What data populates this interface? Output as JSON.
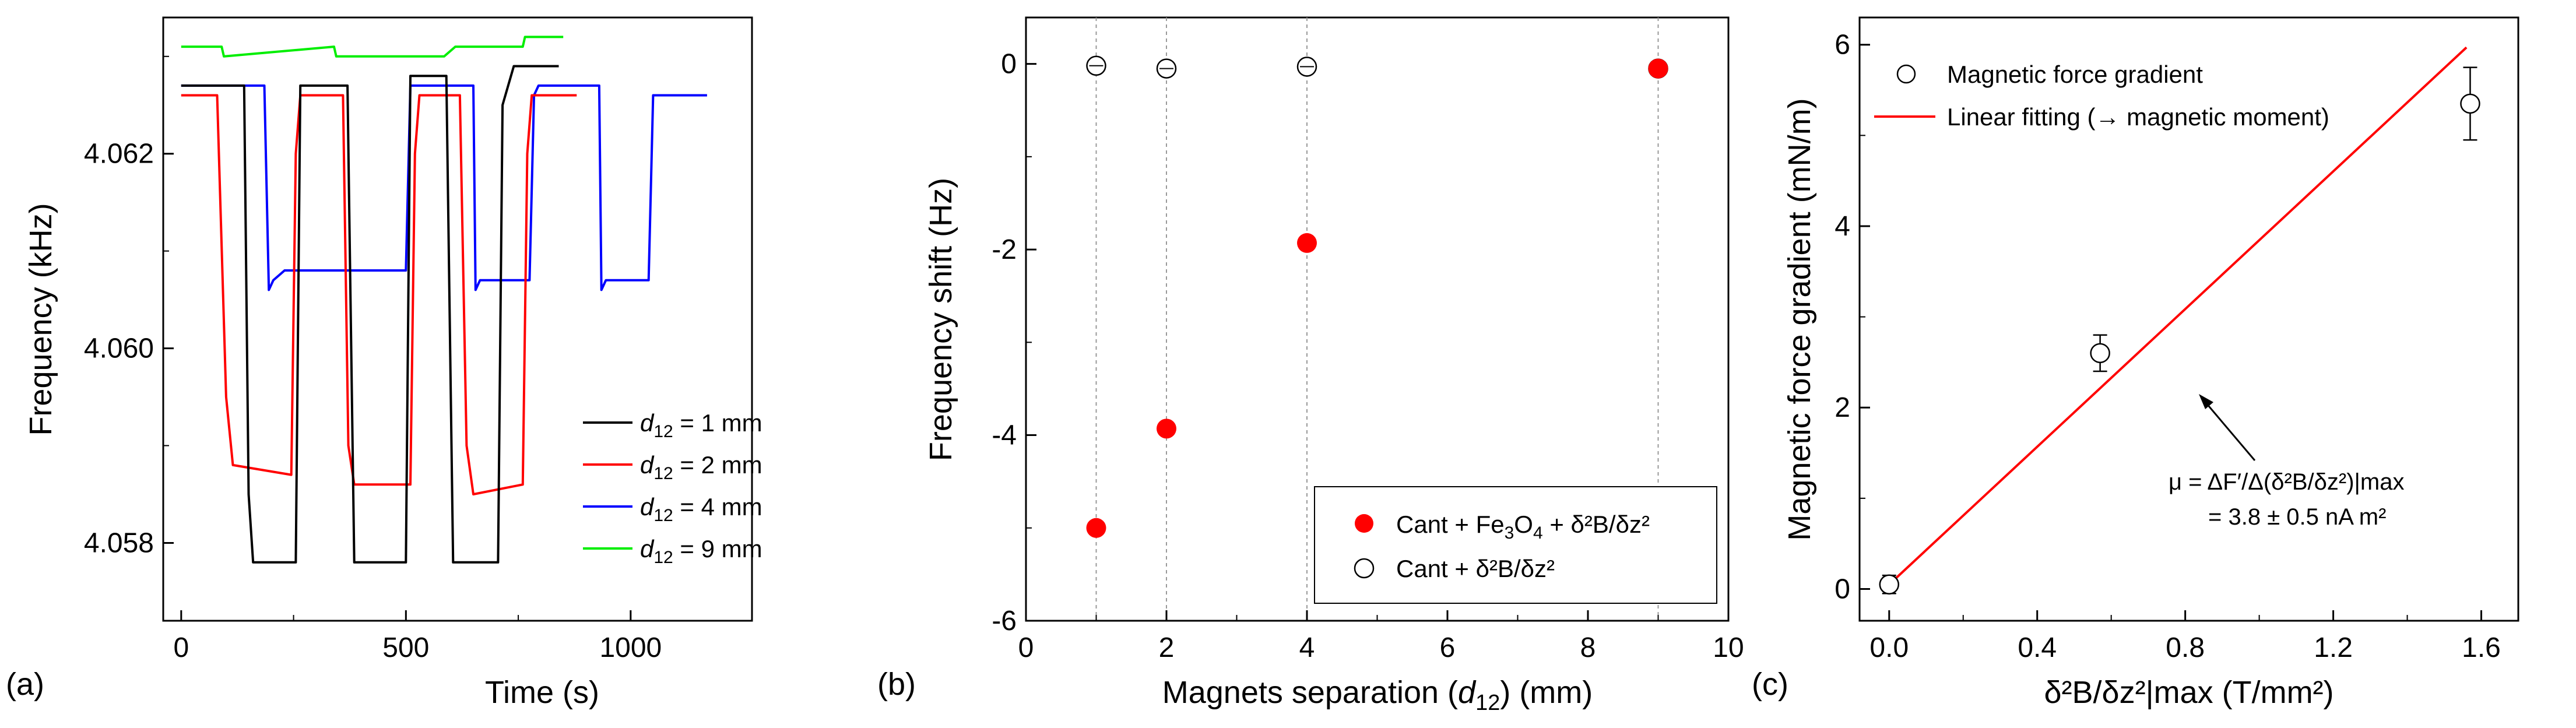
{
  "figure": {
    "colors": {
      "black": "#000000",
      "red": "#ff0000",
      "blue": "#0000ff",
      "green": "#00ee00"
    }
  },
  "chart_data": [
    {
      "panel": "(a)",
      "type": "line",
      "xlabel": "Time (s)",
      "ylabel": "Frequency (kHz)",
      "xlim": [
        -40,
        1270
      ],
      "ylim": [
        4.0572,
        4.0634
      ],
      "xticks": [
        0,
        500,
        1000
      ],
      "yticks": [
        4.058,
        4.06,
        4.062
      ],
      "xtick_labels": [
        "0",
        "500",
        "1000"
      ],
      "ytick_labels": [
        "4.058",
        "4.060",
        "4.062"
      ],
      "series": [
        {
          "name": "d12 = 1 mm",
          "label_sym": "d",
          "label_sub": "12",
          "label_rest": " = 1 mm",
          "color": "#000000",
          "x": [
            0,
            140,
            150,
            160,
            255,
            265,
            370,
            385,
            500,
            510,
            580,
            590,
            605,
            705,
            715,
            740,
            760,
            840
          ],
          "y": [
            4.0627,
            4.0627,
            4.0585,
            4.0578,
            4.0578,
            4.0627,
            4.0627,
            4.0578,
            4.0578,
            4.0628,
            4.0628,
            4.0628,
            4.0578,
            4.0578,
            4.0625,
            4.0629,
            4.0629,
            4.0629
          ]
        },
        {
          "name": "d12 = 2 mm",
          "label_sym": "d",
          "label_sub": "12",
          "label_rest": " = 2 mm",
          "color": "#ff0000",
          "x": [
            0,
            80,
            100,
            115,
            245,
            255,
            265,
            360,
            372,
            385,
            510,
            520,
            530,
            620,
            635,
            650,
            760,
            770,
            780,
            880
          ],
          "y": [
            4.0626,
            4.0626,
            4.0595,
            4.0588,
            4.0587,
            4.062,
            4.0626,
            4.0626,
            4.059,
            4.0586,
            4.0586,
            4.062,
            4.0626,
            4.0626,
            4.059,
            4.0585,
            4.0586,
            4.062,
            4.0626,
            4.0626
          ]
        },
        {
          "name": "d12 = 4 mm",
          "label_sym": "d",
          "label_sub": "12",
          "label_rest": " = 4 mm",
          "color": "#0000ff",
          "x": [
            0,
            185,
            195,
            205,
            230,
            260,
            500,
            510,
            520,
            650,
            655,
            665,
            690,
            775,
            785,
            795,
            930,
            935,
            945,
            970,
            1040,
            1050,
            1060,
            1170
          ],
          "y": [
            4.0627,
            4.0627,
            4.0606,
            4.0607,
            4.0608,
            4.0608,
            4.0608,
            4.0627,
            4.0627,
            4.0627,
            4.0606,
            4.0607,
            4.0607,
            4.0607,
            4.0626,
            4.0627,
            4.0627,
            4.0606,
            4.0607,
            4.0607,
            4.0607,
            4.0626,
            4.0626,
            4.0626
          ]
        },
        {
          "name": "d12 = 9 mm",
          "label_sym": "d",
          "label_sub": "12",
          "label_rest": " = 9 mm",
          "color": "#00ee00",
          "x": [
            0,
            90,
            95,
            340,
            345,
            575,
            585,
            610,
            760,
            765,
            850
          ],
          "y": [
            4.0631,
            4.0631,
            4.063,
            4.0631,
            4.063,
            4.063,
            4.063,
            4.0631,
            4.0631,
            4.0632,
            4.0632
          ]
        }
      ]
    },
    {
      "panel": "(b)",
      "type": "scatter",
      "xlabel": "Magnets separation (d12) (mm)",
      "xlabel_pre": "Magnets separation (",
      "xlabel_sym": "d",
      "xlabel_sub": "12",
      "xlabel_post": ") (mm)",
      "ylabel": "Frequency shift (Hz)",
      "xlim": [
        0,
        10
      ],
      "ylim": [
        -6,
        0.5
      ],
      "xticks": [
        0,
        2,
        4,
        6,
        8,
        10
      ],
      "yticks": [
        0,
        -2,
        -4,
        -6
      ],
      "xtick_labels": [
        "0",
        "2",
        "4",
        "6",
        "8",
        "10"
      ],
      "ytick_labels": [
        "0",
        "-2",
        "-4",
        "-6"
      ],
      "vlines_x": [
        1,
        2,
        4,
        9
      ],
      "series": [
        {
          "name": "Cant + Fe3O4 + δ²B/δz²",
          "label": "Cant + Fe",
          "label_sub": "3",
          "label_mid": "O",
          "label_sub2": "4",
          "label_rest": " + δ²B/δz²",
          "color": "#ff0000",
          "marker": "filled-circle",
          "x": [
            1,
            2,
            4,
            9
          ],
          "y": [
            -5.0,
            -3.93,
            -1.93,
            -0.05
          ]
        },
        {
          "name": "Cant + δ²B/δz²",
          "label": "Cant + δ²B/δz²",
          "color": "#000000",
          "marker": "open-circle",
          "x": [
            1,
            2,
            4,
            9
          ],
          "y": [
            -0.02,
            -0.05,
            -0.03,
            -0.05
          ]
        }
      ]
    },
    {
      "panel": "(c)",
      "type": "scatter",
      "xlabel": "δ²B/δz²|max (T/mm²)",
      "ylabel": "Magnetic force gradient (mN/m)",
      "xlim": [
        -0.08,
        1.7
      ],
      "ylim": [
        -0.35,
        6.3
      ],
      "xticks": [
        0.0,
        0.4,
        0.8,
        1.2,
        1.6
      ],
      "yticks": [
        0,
        2,
        4,
        6
      ],
      "xtick_labels": [
        "0.0",
        "0.4",
        "0.8",
        "1.2",
        "1.6"
      ],
      "ytick_labels": [
        "0",
        "2",
        "4",
        "6"
      ],
      "series": [
        {
          "name": "Magnetic force gradient",
          "color": "#000000",
          "marker": "open-circle",
          "x": [
            0.0,
            0.57,
            1.57
          ],
          "y": [
            0.05,
            2.6,
            5.35
          ],
          "yerr": [
            0.1,
            0.2,
            0.4
          ]
        },
        {
          "name": "Linear fitting (→ magnetic moment)",
          "color": "#ff0000",
          "type": "line",
          "x": [
            0.0,
            1.56
          ],
          "y": [
            0.05,
            5.97
          ]
        }
      ],
      "annotation": {
        "line1": "μ = ΔF′/Δ(δ²B/δz²)|max",
        "line2": "= 3.8 ± 0.5 nA m²"
      }
    }
  ],
  "panel_labels": [
    "(a)",
    "(b)",
    "(c)"
  ]
}
